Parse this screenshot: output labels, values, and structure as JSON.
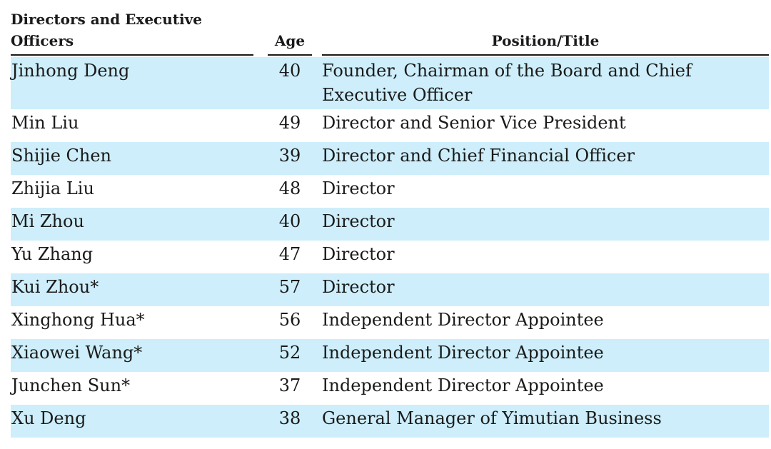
{
  "table": {
    "headers": {
      "name": "Directors and Executive Officers",
      "age": "Age",
      "position": "Position/Title"
    },
    "rows": [
      {
        "name": "Jinhong Deng",
        "age": "40",
        "position": "Founder, Chairman of the Board and Chief Executive Officer"
      },
      {
        "name": "Min Liu",
        "age": "49",
        "position": "Director and Senior Vice President"
      },
      {
        "name": "Shijie Chen",
        "age": "39",
        "position": "Director and Chief Financial Officer"
      },
      {
        "name": "Zhijia Liu",
        "age": "48",
        "position": "Director"
      },
      {
        "name": "Mi Zhou",
        "age": "40",
        "position": "Director"
      },
      {
        "name": "Yu Zhang",
        "age": "47",
        "position": "Director"
      },
      {
        "name": "Kui Zhou*",
        "age": "57",
        "position": "Director"
      },
      {
        "name": "Xinghong Hua*",
        "age": "56",
        "position": "Independent Director Appointee"
      },
      {
        "name": "Xiaowei Wang*",
        "age": "52",
        "position": "Independent Director Appointee"
      },
      {
        "name": "Junchen Sun*",
        "age": "37",
        "position": "Independent Director Appointee"
      },
      {
        "name": "Xu Deng",
        "age": "38",
        "position": "General Manager of Yimutian Business"
      }
    ],
    "row_shade_color": "#cdeefa"
  }
}
